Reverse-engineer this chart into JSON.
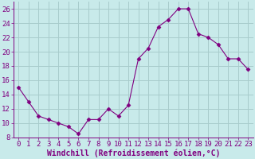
{
  "x": [
    0,
    1,
    2,
    3,
    4,
    5,
    6,
    7,
    8,
    9,
    10,
    11,
    12,
    13,
    14,
    15,
    16,
    17,
    18,
    19,
    20,
    21,
    22,
    23
  ],
  "y": [
    15,
    13,
    11,
    10.5,
    10,
    9.5,
    8.5,
    10.5,
    10.5,
    12,
    11,
    12.5,
    19,
    20.5,
    23.5,
    24.5,
    26,
    26,
    22.5,
    22,
    21,
    19,
    19,
    17.5
  ],
  "line_color": "#800080",
  "marker": "D",
  "marker_size": 2.5,
  "background_color": "#c8eaea",
  "grid_color": "#a8cccc",
  "xlabel": "Windchill (Refroidissement éolien,°C)",
  "axis_color": "#800080",
  "ylim": [
    8,
    27
  ],
  "yticks": [
    8,
    10,
    12,
    14,
    16,
    18,
    20,
    22,
    24,
    26
  ],
  "xticks": [
    0,
    1,
    2,
    3,
    4,
    5,
    6,
    7,
    8,
    9,
    10,
    11,
    12,
    13,
    14,
    15,
    16,
    17,
    18,
    19,
    20,
    21,
    22,
    23
  ],
  "font_size": 6.5,
  "xlabel_font_size": 7
}
